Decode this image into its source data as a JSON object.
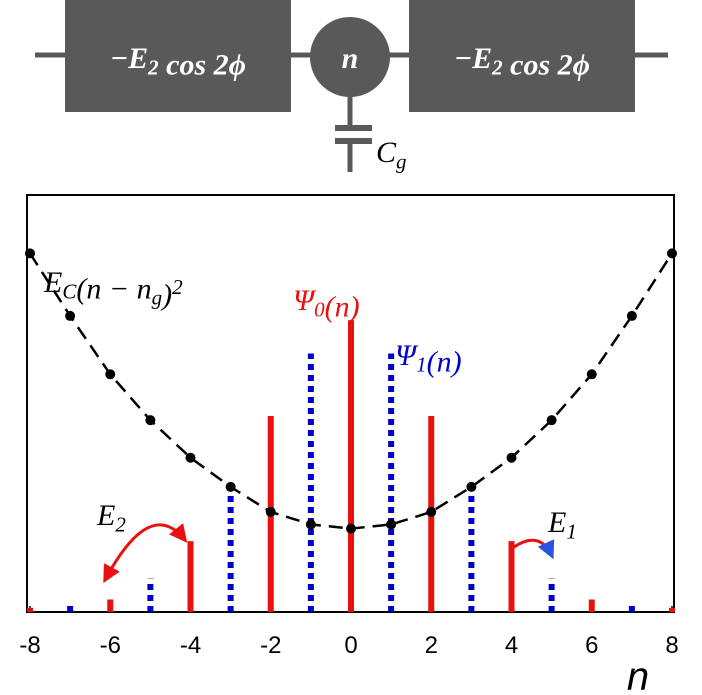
{
  "circuit": {
    "left_box": "−E_2 cos 2ϕ",
    "node": "n",
    "right_box": "−E_2 cos 2ϕ",
    "capacitor": "C_g"
  },
  "chart_data": {
    "type": "bar",
    "x": [
      -8,
      -7,
      -6,
      -5,
      -4,
      -3,
      -2,
      -1,
      0,
      1,
      2,
      3,
      4,
      5,
      6,
      7,
      8
    ],
    "xlim": [
      -8,
      8
    ],
    "xticks": [
      -8,
      -6,
      -4,
      -2,
      0,
      2,
      4,
      6,
      8
    ],
    "ylim": [
      0,
      1
    ],
    "xlabel": "n",
    "series": [
      {
        "name": "Ψ_0(n)",
        "color": "#e8110f",
        "style": "solid",
        "values": [
          0.01,
          null,
          0.03,
          null,
          0.17,
          null,
          0.47,
          null,
          0.7,
          null,
          0.47,
          null,
          0.17,
          null,
          0.03,
          null,
          0.01
        ]
      },
      {
        "name": "Ψ_1(n)",
        "color": "#0000cc",
        "style": "dotted",
        "values": [
          null,
          0.015,
          null,
          0.08,
          null,
          0.3,
          null,
          0.62,
          null,
          0.62,
          null,
          0.3,
          null,
          0.08,
          null,
          0.015,
          null
        ]
      },
      {
        "name": "E_C(n − n_g)^2",
        "color": "#000000",
        "style": "dashed-curve",
        "values": [
          0.86,
          0.71,
          0.57,
          0.46,
          0.37,
          0.3,
          0.24,
          0.21,
          0.2,
          0.21,
          0.24,
          0.3,
          0.37,
          0.46,
          0.57,
          0.71,
          0.86
        ]
      }
    ],
    "annotations": {
      "left_hop": "E_2",
      "right_hop": "E_1"
    }
  }
}
